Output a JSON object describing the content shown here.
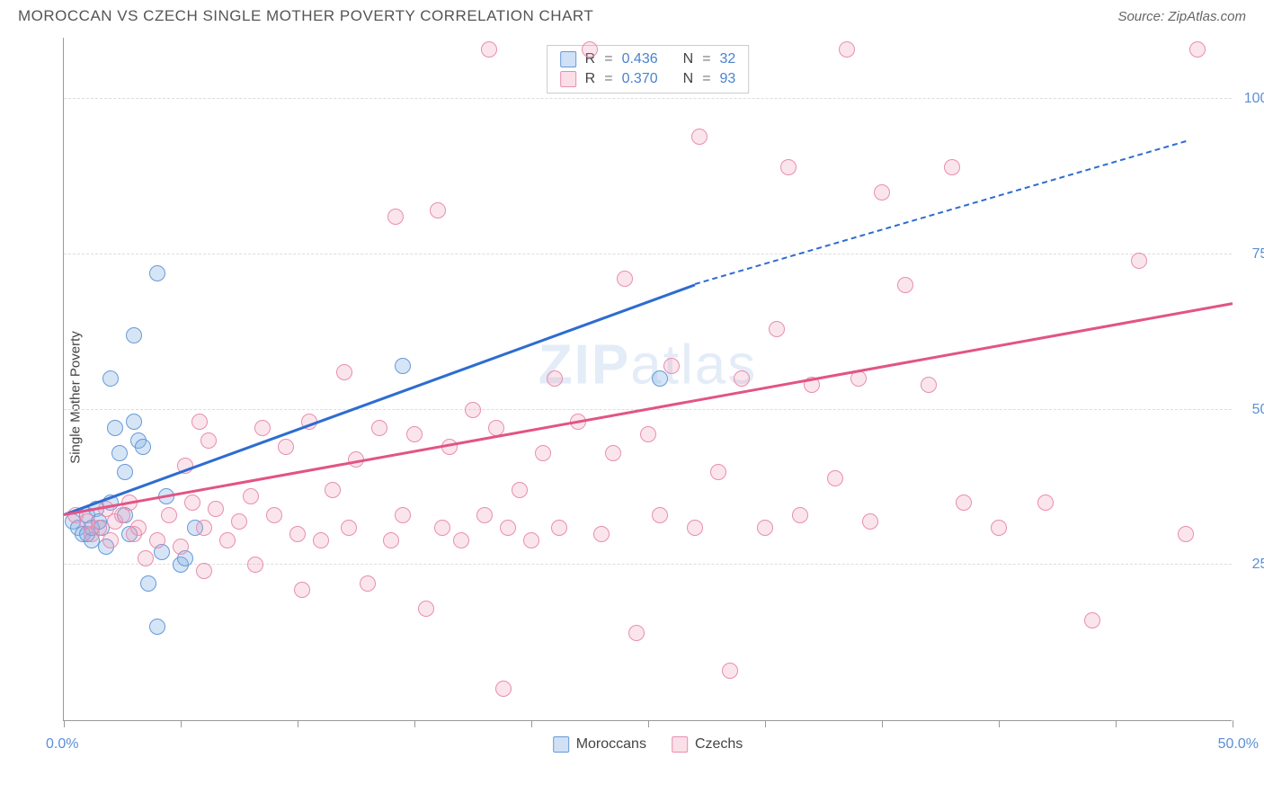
{
  "title": "MOROCCAN VS CZECH SINGLE MOTHER POVERTY CORRELATION CHART",
  "source": "Source: ZipAtlas.com",
  "ylabel": "Single Mother Poverty",
  "watermark_bold": "ZIP",
  "watermark_rest": "atlas",
  "chart": {
    "type": "scatter",
    "xlim": [
      0,
      50
    ],
    "ylim": [
      0,
      110
    ],
    "xtick_positions": [
      0,
      5,
      10,
      15,
      20,
      25,
      30,
      35,
      40,
      45,
      50
    ],
    "xtick_labels_shown": {
      "0": "0.0%",
      "50": "50.0%"
    },
    "ytick_positions": [
      25,
      50,
      75,
      100
    ],
    "ytick_labels": {
      "25": "25.0%",
      "50": "50.0%",
      "75": "75.0%",
      "100": "100.0%"
    },
    "grid_color": "#dddddd",
    "axis_color": "#999999",
    "background_color": "#ffffff",
    "tick_label_color": "#5a8fd6",
    "tick_label_fontsize": 16,
    "title_fontsize": 17,
    "title_color": "#555555",
    "ylabel_fontsize": 15,
    "point_radius": 9,
    "series": [
      {
        "name": "Moroccans",
        "marker_fill": "rgba(138,180,230,0.35)",
        "marker_stroke": "#6699d8",
        "R": "0.436",
        "N": "32",
        "trend": {
          "x0": 0,
          "y0": 33,
          "x1": 27,
          "y1": 70,
          "color": "#2e6cd0",
          "width": 2.5,
          "dashed_extension": {
            "x1": 48,
            "y1": 93
          }
        },
        "points": [
          [
            0.4,
            32
          ],
          [
            0.6,
            31
          ],
          [
            0.8,
            30
          ],
          [
            1.0,
            33
          ],
          [
            1.2,
            29
          ],
          [
            1.4,
            34
          ],
          [
            1.6,
            31
          ],
          [
            1.8,
            28
          ],
          [
            2.0,
            35
          ],
          [
            2.0,
            55
          ],
          [
            2.2,
            47
          ],
          [
            2.4,
            43
          ],
          [
            2.6,
            40
          ],
          [
            2.8,
            30
          ],
          [
            2.6,
            33
          ],
          [
            3.0,
            48
          ],
          [
            3.2,
            45
          ],
          [
            3.4,
            44
          ],
          [
            3.0,
            62
          ],
          [
            3.6,
            22
          ],
          [
            4.0,
            15
          ],
          [
            4.0,
            72
          ],
          [
            4.2,
            27
          ],
          [
            4.4,
            36
          ],
          [
            5.0,
            25
          ],
          [
            5.2,
            26
          ],
          [
            5.6,
            31
          ],
          [
            1.0,
            30
          ],
          [
            1.2,
            31
          ],
          [
            14.5,
            57
          ],
          [
            25.5,
            55
          ],
          [
            1.5,
            32
          ]
        ]
      },
      {
        "name": "Czechs",
        "marker_fill": "rgba(240,150,180,0.25)",
        "marker_stroke": "#e98db0",
        "R": "0.370",
        "N": "93",
        "trend": {
          "x0": 0,
          "y0": 33,
          "x1": 50,
          "y1": 67,
          "color": "#e25485",
          "width": 2.5
        },
        "points": [
          [
            0.5,
            33
          ],
          [
            1.0,
            32
          ],
          [
            1.2,
            30
          ],
          [
            1.5,
            31
          ],
          [
            1.8,
            34
          ],
          [
            2.0,
            29
          ],
          [
            2.2,
            32
          ],
          [
            2.5,
            33
          ],
          [
            2.8,
            35
          ],
          [
            3.0,
            30
          ],
          [
            3.2,
            31
          ],
          [
            3.5,
            26
          ],
          [
            4.0,
            29
          ],
          [
            4.5,
            33
          ],
          [
            5.0,
            28
          ],
          [
            5.2,
            41
          ],
          [
            5.5,
            35
          ],
          [
            5.8,
            48
          ],
          [
            6.0,
            31
          ],
          [
            6.2,
            45
          ],
          [
            6.5,
            34
          ],
          [
            7.0,
            29
          ],
          [
            7.5,
            32
          ],
          [
            8.0,
            36
          ],
          [
            8.2,
            25
          ],
          [
            8.5,
            47
          ],
          [
            9.0,
            33
          ],
          [
            9.5,
            44
          ],
          [
            10.0,
            30
          ],
          [
            10.2,
            21
          ],
          [
            10.5,
            48
          ],
          [
            11.0,
            29
          ],
          [
            11.5,
            37
          ],
          [
            12.0,
            56
          ],
          [
            12.2,
            31
          ],
          [
            12.5,
            42
          ],
          [
            13.0,
            22
          ],
          [
            13.5,
            47
          ],
          [
            14.0,
            29
          ],
          [
            14.2,
            81
          ],
          [
            14.5,
            33
          ],
          [
            15.0,
            46
          ],
          [
            15.5,
            18
          ],
          [
            16.0,
            82
          ],
          [
            16.2,
            31
          ],
          [
            16.5,
            44
          ],
          [
            17.0,
            29
          ],
          [
            17.5,
            50
          ],
          [
            18.0,
            33
          ],
          [
            18.2,
            108
          ],
          [
            18.5,
            47
          ],
          [
            18.8,
            5
          ],
          [
            19.0,
            31
          ],
          [
            19.5,
            37
          ],
          [
            20.0,
            29
          ],
          [
            20.5,
            43
          ],
          [
            21.0,
            55
          ],
          [
            21.2,
            31
          ],
          [
            22.0,
            48
          ],
          [
            22.5,
            108
          ],
          [
            23.0,
            30
          ],
          [
            23.5,
            43
          ],
          [
            24.0,
            71
          ],
          [
            24.5,
            14
          ],
          [
            25.0,
            46
          ],
          [
            25.5,
            33
          ],
          [
            26.0,
            57
          ],
          [
            27.0,
            31
          ],
          [
            27.2,
            94
          ],
          [
            28.0,
            40
          ],
          [
            28.5,
            8
          ],
          [
            29.0,
            55
          ],
          [
            30.0,
            31
          ],
          [
            30.5,
            63
          ],
          [
            31.0,
            89
          ],
          [
            31.5,
            33
          ],
          [
            32.0,
            54
          ],
          [
            33.0,
            39
          ],
          [
            34.0,
            55
          ],
          [
            34.5,
            32
          ],
          [
            35.0,
            85
          ],
          [
            36.0,
            70
          ],
          [
            37.0,
            54
          ],
          [
            38.0,
            89
          ],
          [
            38.5,
            35
          ],
          [
            40.0,
            31
          ],
          [
            42.0,
            35
          ],
          [
            44.0,
            16
          ],
          [
            46.0,
            74
          ],
          [
            48.0,
            30
          ],
          [
            48.5,
            108
          ],
          [
            33.5,
            108
          ],
          [
            6.0,
            24
          ]
        ]
      }
    ],
    "legend_top": {
      "border_color": "#cccccc",
      "label_color": "#444444",
      "value_color": "#4a82d0"
    },
    "legend_bottom_labels": [
      "Moroccans",
      "Czechs"
    ]
  }
}
